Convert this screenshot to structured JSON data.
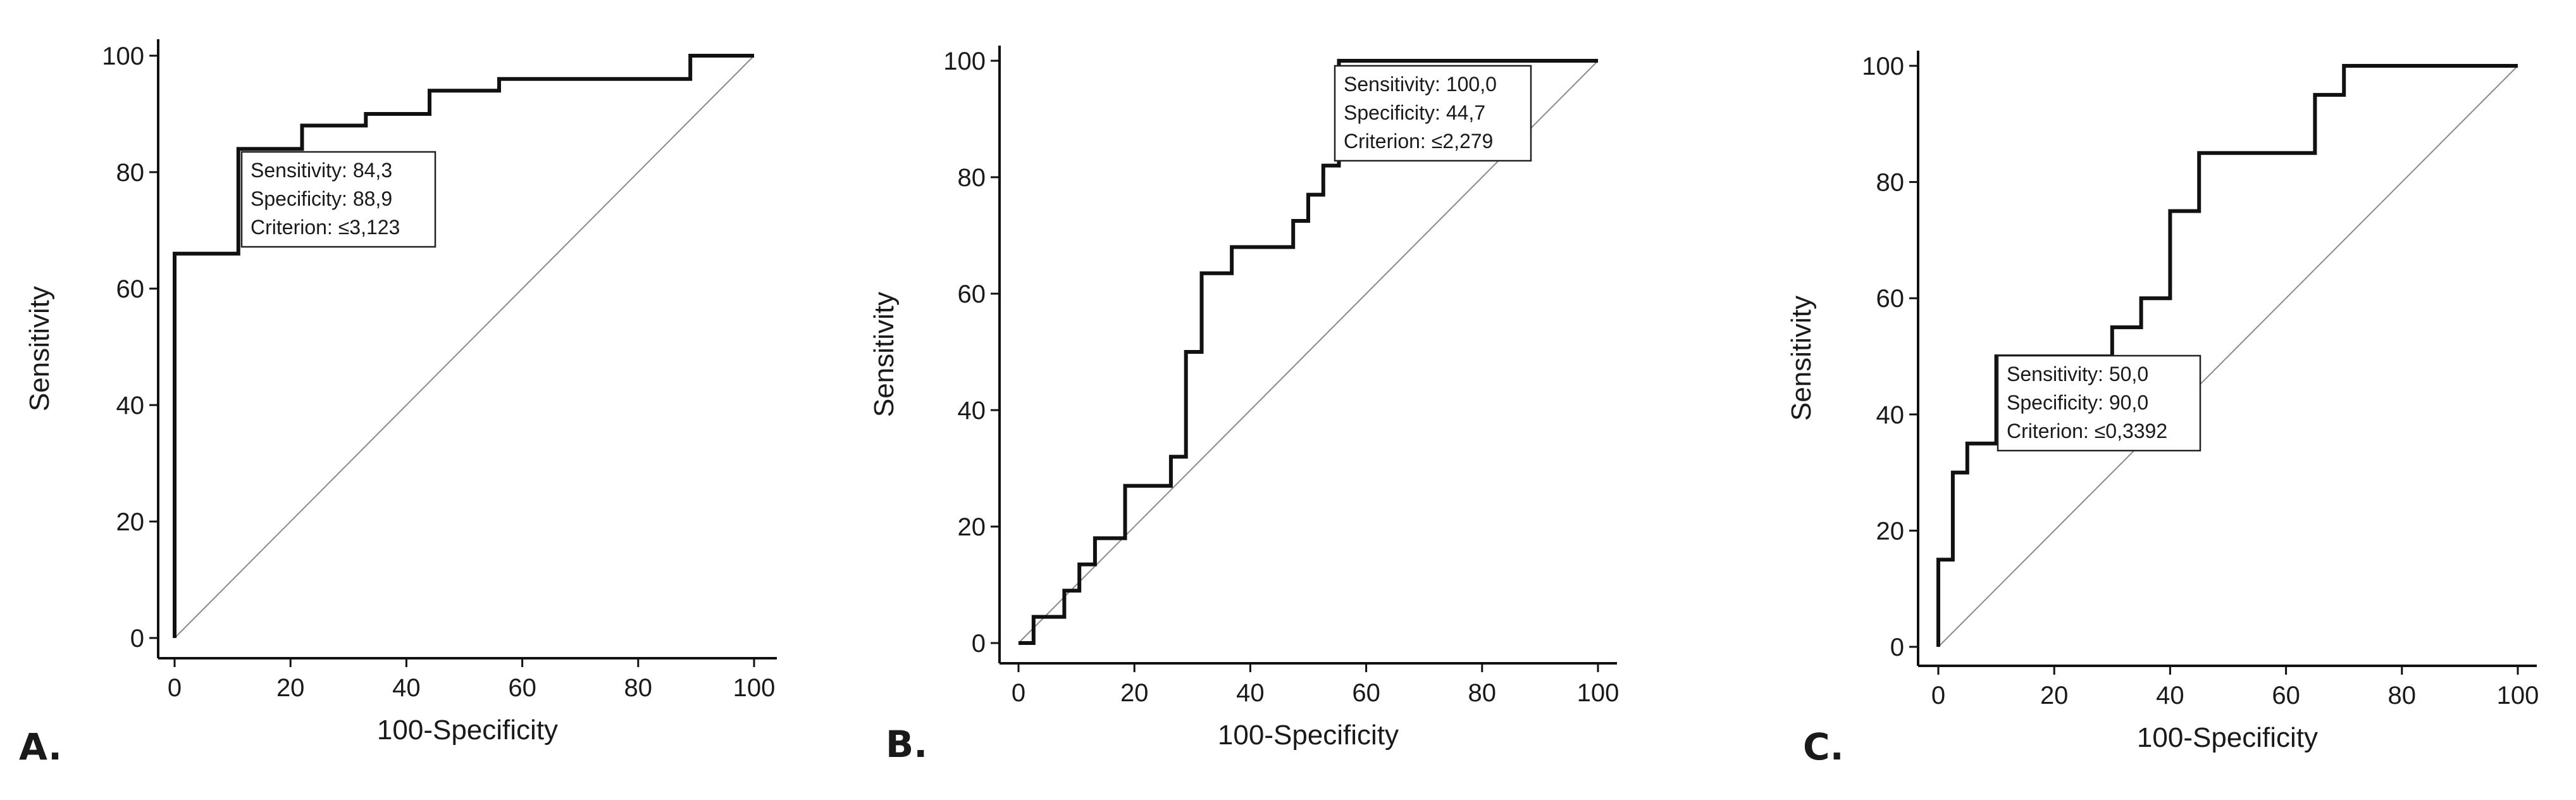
{
  "chart_data": [
    {
      "type": "line",
      "panel_label": "A.",
      "xlabel": "100-Specificity",
      "ylabel": "Sensitivity",
      "xlim": [
        0,
        100
      ],
      "ylim": [
        0,
        100
      ],
      "xticks": [
        "0",
        "20",
        "40",
        "60",
        "80",
        "100"
      ],
      "yticks": [
        "0",
        "20",
        "40",
        "60",
        "80",
        "100"
      ],
      "roc_curve": {
        "x": [
          0,
          0,
          11,
          11,
          22,
          22,
          33,
          33,
          44,
          44,
          56,
          56,
          89,
          89,
          100
        ],
        "y": [
          0,
          66,
          66,
          84,
          84,
          88,
          88,
          90,
          90,
          94,
          94,
          96,
          96,
          100,
          100
        ]
      },
      "reference_line": {
        "x": [
          0,
          100
        ],
        "y": [
          0,
          100
        ]
      },
      "annotation": {
        "sensitivity": "Sensitivity: 84,3",
        "specificity": "Specificity: 88,9",
        "criterion": "Criterion: ≤3,123",
        "anchor_x": 11,
        "anchor_y": 84
      },
      "colors": {
        "curve": "#111111",
        "reference": "#8a8a8a"
      }
    },
    {
      "type": "line",
      "panel_label": "B.",
      "xlabel": "100-Specificity",
      "ylabel": "Sensitivity",
      "xlim": [
        0,
        100
      ],
      "ylim": [
        0,
        100
      ],
      "xticks": [
        "0",
        "20",
        "40",
        "60",
        "80",
        "100"
      ],
      "yticks": [
        "0",
        "20",
        "40",
        "60",
        "80",
        "100"
      ],
      "roc_curve": {
        "x": [
          0,
          2.6,
          2.6,
          7.9,
          7.9,
          10.5,
          10.5,
          13.2,
          13.2,
          18.4,
          18.4,
          26.3,
          26.3,
          28.9,
          28.9,
          31.6,
          31.6,
          36.8,
          36.8,
          47.4,
          47.4,
          50,
          50,
          52.6,
          52.6,
          55.3,
          55.3,
          100
        ],
        "y": [
          0,
          0,
          4.5,
          4.5,
          9,
          9,
          13.5,
          13.5,
          18,
          18,
          27,
          27,
          32,
          32,
          50,
          50,
          63.5,
          63.5,
          68,
          68,
          72.5,
          72.5,
          77,
          77,
          82,
          82,
          100,
          100
        ]
      },
      "reference_line": {
        "x": [
          0,
          100
        ],
        "y": [
          0,
          100
        ]
      },
      "annotation": {
        "sensitivity": "Sensitivity: 100,0",
        "specificity": "Specificity: 44,7",
        "criterion": "Criterion: ≤2,279",
        "anchor_x": 55.3,
        "anchor_y": 100
      },
      "colors": {
        "curve": "#111111",
        "reference": "#8a8a8a"
      }
    },
    {
      "type": "line",
      "panel_label": "C.",
      "xlabel": "100-Specificity",
      "ylabel": "Sensitivity",
      "xlim": [
        0,
        100
      ],
      "ylim": [
        0,
        100
      ],
      "xticks": [
        "0",
        "20",
        "40",
        "60",
        "80",
        "100"
      ],
      "yticks": [
        "0",
        "20",
        "40",
        "60",
        "80",
        "100"
      ],
      "roc_curve": {
        "x": [
          0,
          0,
          2.5,
          2.5,
          5,
          5,
          10,
          10,
          30,
          30,
          35,
          35,
          40,
          40,
          45,
          45,
          65,
          65,
          70,
          70,
          100
        ],
        "y": [
          0,
          15,
          15,
          30,
          30,
          35,
          35,
          50,
          50,
          55,
          55,
          60,
          60,
          75,
          75,
          85,
          85,
          95,
          95,
          100,
          100
        ]
      },
      "reference_line": {
        "x": [
          0,
          100
        ],
        "y": [
          0,
          100
        ]
      },
      "annotation": {
        "sensitivity": "Sensitivity: 50,0",
        "specificity": "Specificity: 90,0",
        "criterion": "Criterion: ≤0,3392",
        "anchor_x": 10,
        "anchor_y": 50
      },
      "colors": {
        "curve": "#111111",
        "reference": "#8a8a8a"
      }
    }
  ]
}
